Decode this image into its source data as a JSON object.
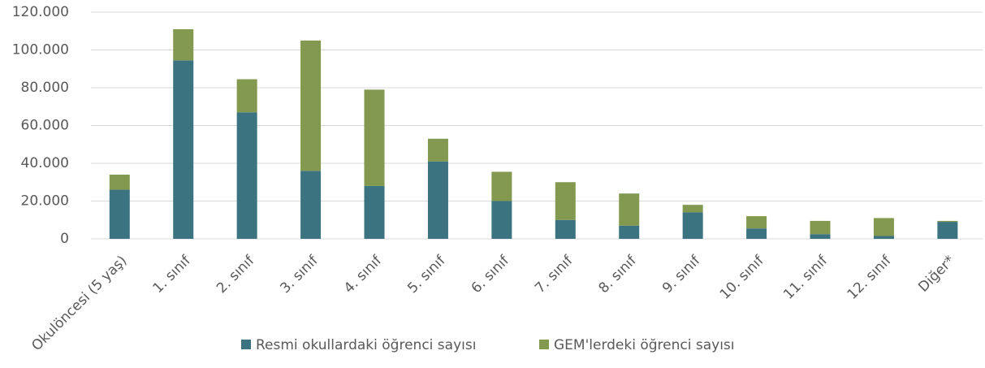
{
  "chart_data": {
    "type": "stacked_bar",
    "categories": [
      "Okulöncesi (5 yaş)",
      "1. sınıf",
      "2. sınıf",
      "3. sınıf",
      "4. sınıf",
      "5. sınıf",
      "6. sınıf",
      "7. sınıf",
      "8. sınıf",
      "9. sınıf",
      "10. sınıf",
      "11. sınıf",
      "12. sınıf",
      "Diğer*"
    ],
    "series": [
      {
        "name": "Resmi okullardaki öğrenci sayısı",
        "color": "#3b7480",
        "values": [
          26000,
          94500,
          67000,
          36000,
          28000,
          41000,
          20000,
          10000,
          7000,
          14000,
          5500,
          2500,
          1500,
          9000
        ]
      },
      {
        "name": "GEM'lerdeki öğrenci sayısı",
        "color": "#82994f",
        "values": [
          8000,
          16500,
          17500,
          69000,
          51000,
          12000,
          15500,
          20000,
          17000,
          4000,
          6500,
          7000,
          9500,
          500
        ]
      }
    ],
    "ylim": [
      0,
      120000
    ],
    "yticks": [
      0,
      {
        "value": 20000,
        "label": "20.000"
      },
      {
        "value": 40000,
        "label": "40.000"
      },
      {
        "value": 60000,
        "label": "60.000"
      },
      {
        "value": 80000,
        "label": "80.000"
      },
      {
        "value": 100000,
        "label": "100.000"
      },
      {
        "value": 120000,
        "label": "120.000"
      }
    ],
    "grid": true,
    "legend": "bottom"
  }
}
